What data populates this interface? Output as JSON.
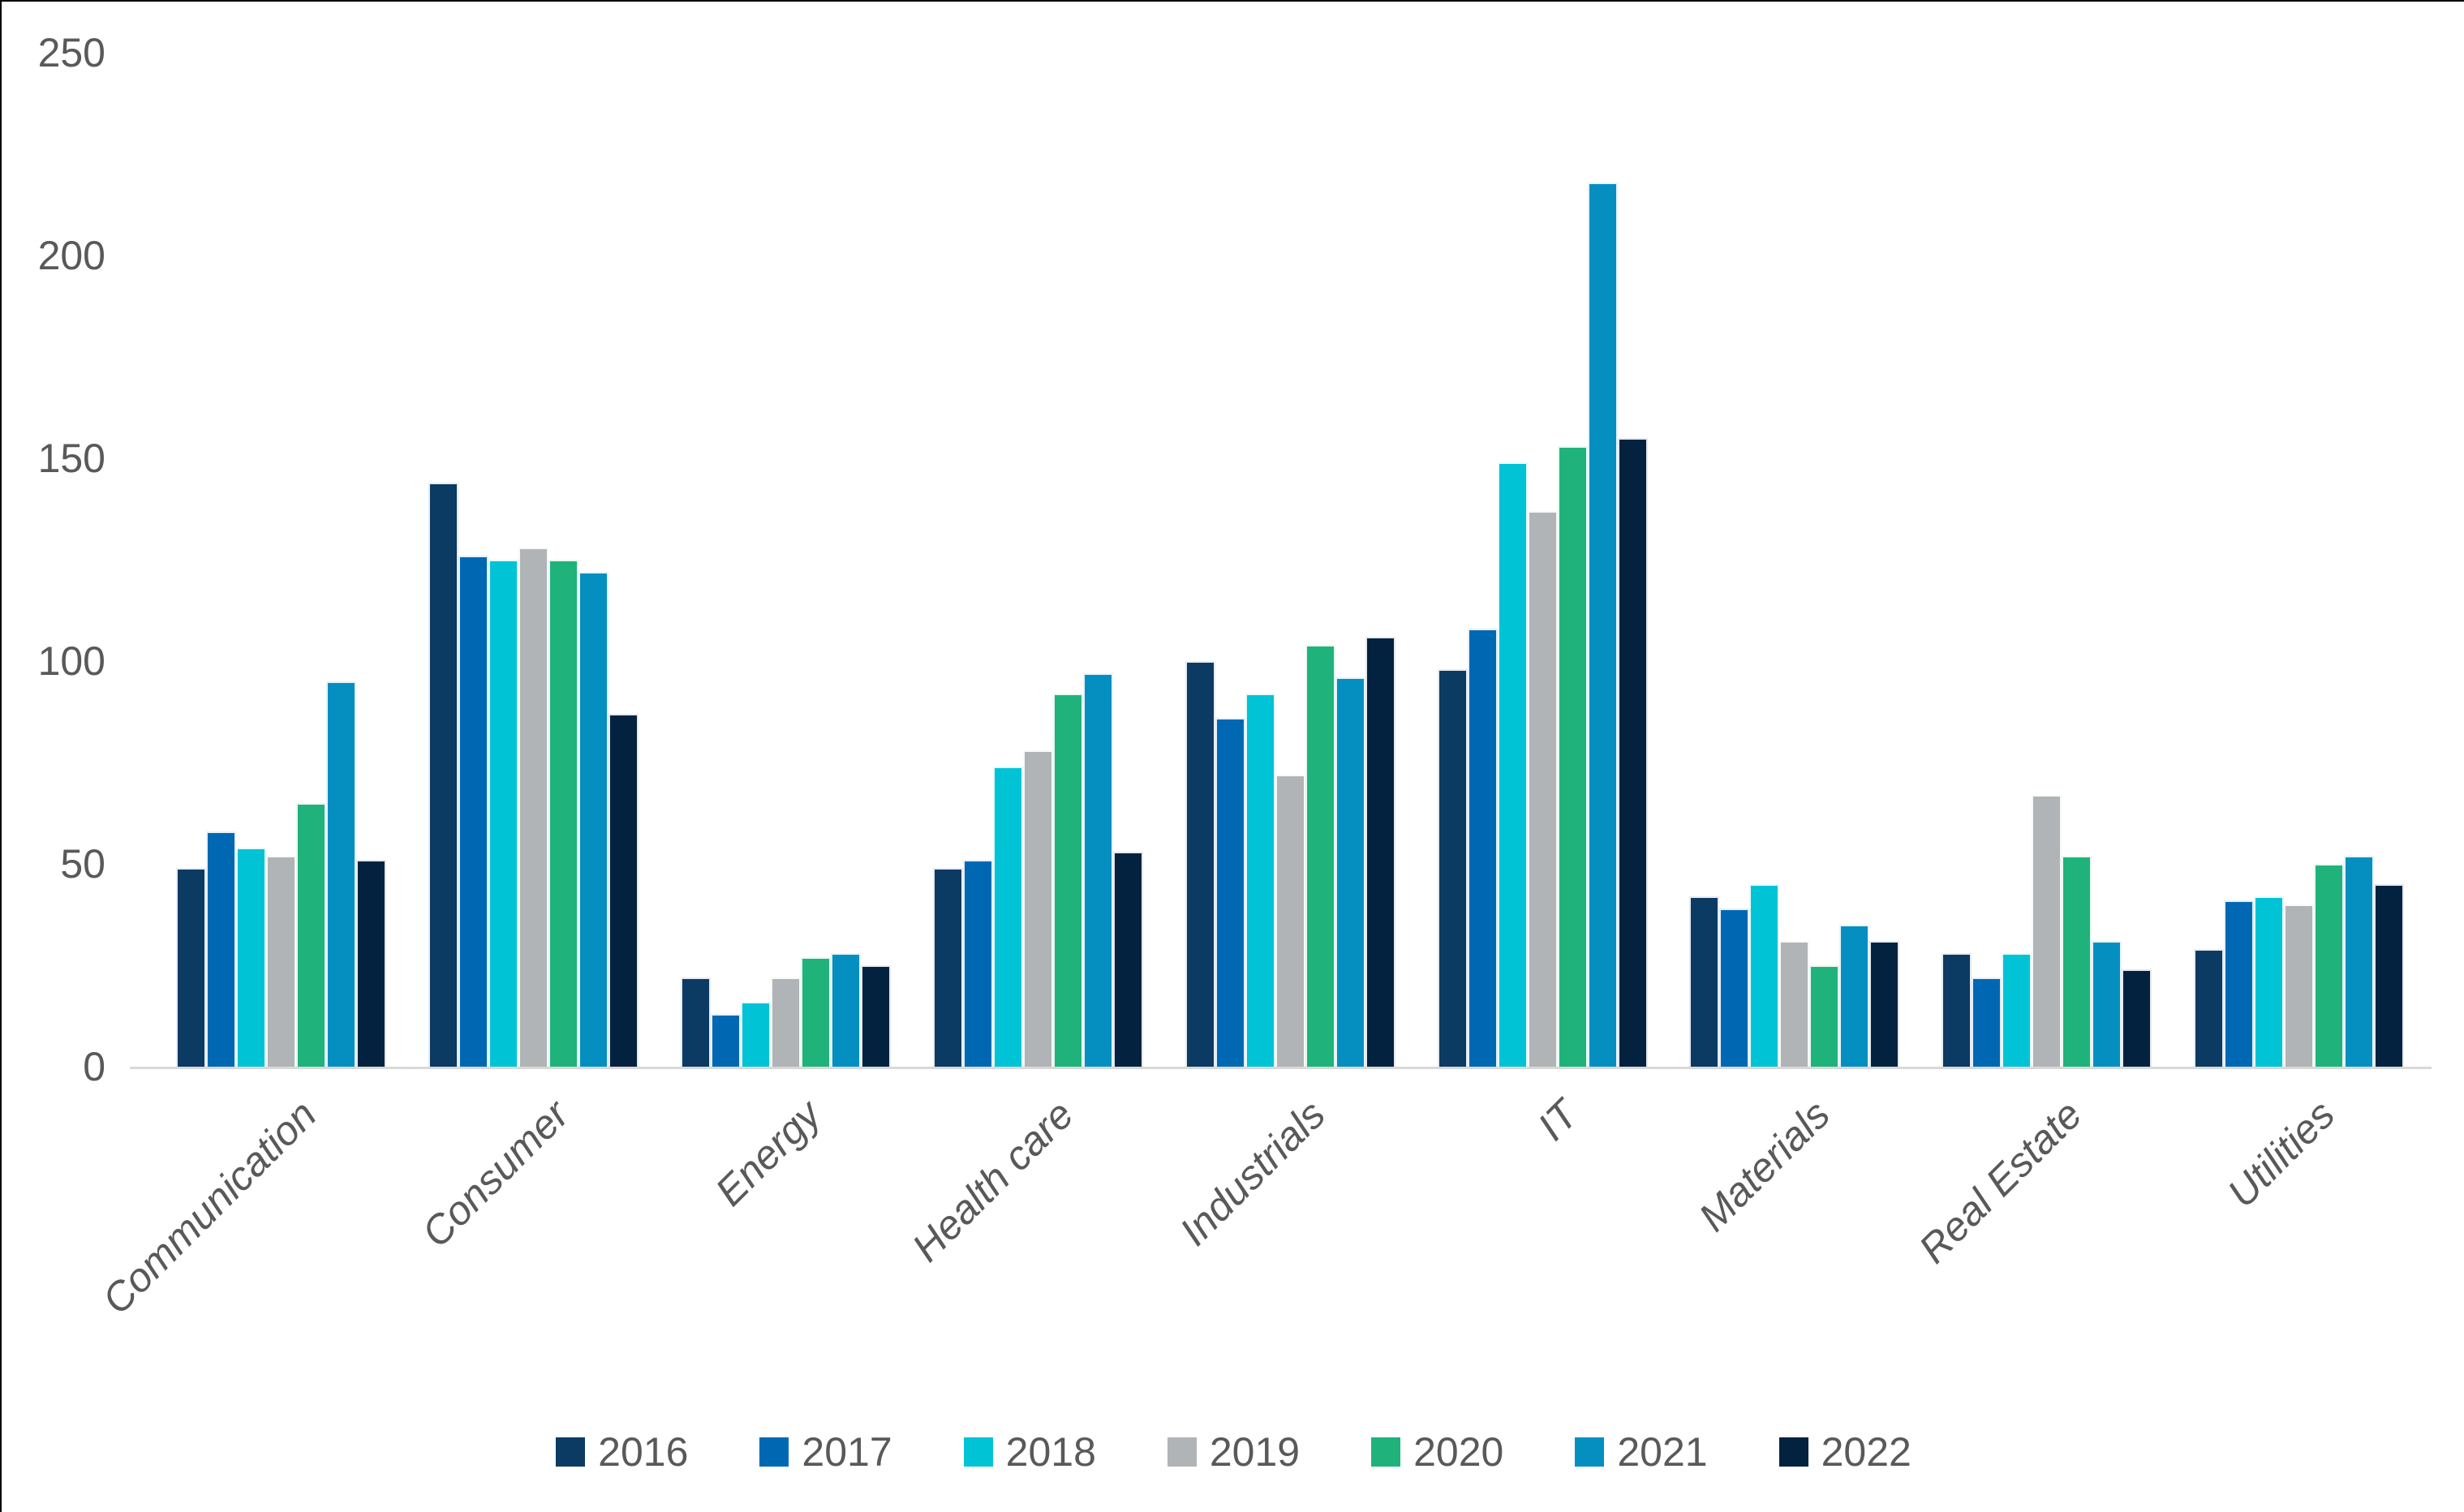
{
  "chart_data": {
    "type": "bar",
    "title": "",
    "xlabel": "",
    "ylabel": "",
    "categories": [
      "Communication",
      "Consumer",
      "Energy",
      "Health care",
      "Industrials",
      "IT",
      "Materials",
      "Real Estate",
      "Utilities"
    ],
    "series": [
      {
        "name": "2016",
        "color": "#0b3a63",
        "values": [
          49,
          144,
          22,
          49,
          100,
          98,
          42,
          28,
          29
        ]
      },
      {
        "name": "2017",
        "color": "#0068b3",
        "values": [
          58,
          126,
          13,
          51,
          86,
          108,
          39,
          22,
          41
        ]
      },
      {
        "name": "2018",
        "color": "#00c3d5",
        "values": [
          54,
          125,
          16,
          74,
          92,
          149,
          45,
          28,
          42
        ]
      },
      {
        "name": "2019",
        "color": "#b0b4b7",
        "values": [
          52,
          128,
          22,
          78,
          72,
          137,
          31,
          67,
          40
        ]
      },
      {
        "name": "2020",
        "color": "#1fb37b",
        "values": [
          65,
          125,
          27,
          92,
          104,
          153,
          25,
          52,
          50
        ]
      },
      {
        "name": "2021",
        "color": "#058fc0",
        "values": [
          95,
          122,
          28,
          97,
          96,
          218,
          35,
          31,
          52
        ]
      },
      {
        "name": "2022",
        "color": "#03223f",
        "values": [
          51,
          87,
          25,
          53,
          106,
          155,
          31,
          24,
          45
        ]
      }
    ],
    "ylim": [
      0,
      250
    ],
    "yticks": [
      0,
      50,
      100,
      150,
      200,
      250
    ],
    "grid": false,
    "legend_position": "bottom",
    "axis_line_color": "#d9d9d9",
    "text_color": "#595959",
    "background_color": "#ffffff"
  }
}
